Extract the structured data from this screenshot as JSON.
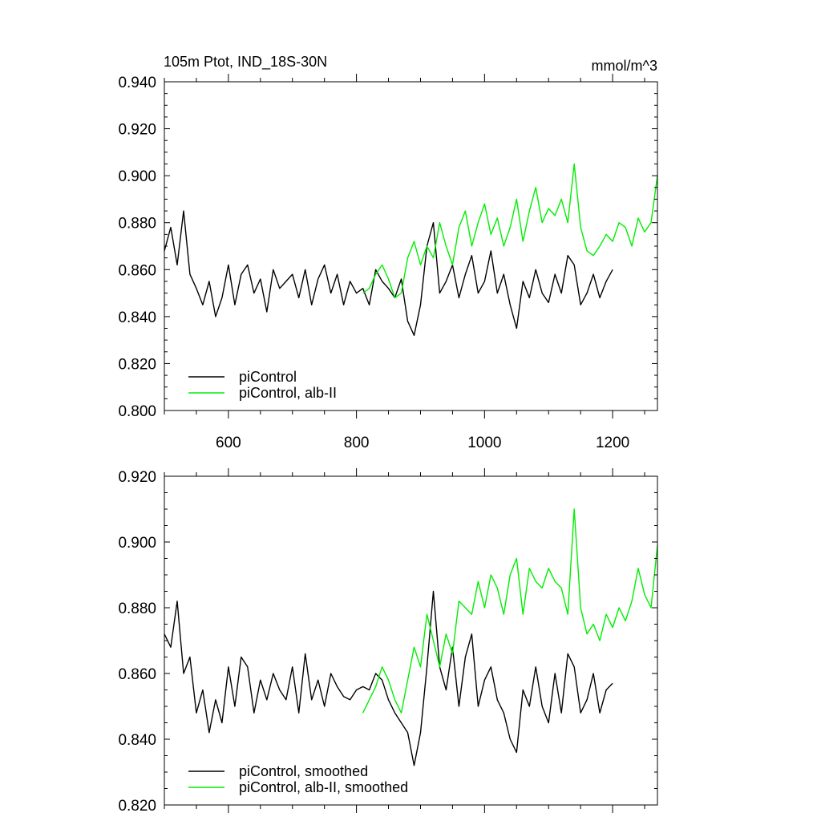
{
  "chart_data": [
    {
      "type": "line",
      "title_left": "105m Ptot, IND_18S-30N",
      "title_right": "mmol/m^3",
      "xlim": [
        500,
        1270
      ],
      "ylim": [
        0.8,
        0.94
      ],
      "x_ticks": [
        600,
        800,
        1000,
        1200
      ],
      "x_tick_labels": [
        "600",
        "800",
        "1000",
        "1200"
      ],
      "y_ticks": [
        0.8,
        0.82,
        0.84,
        0.86,
        0.88,
        0.9,
        0.92,
        0.94
      ],
      "y_tick_labels": [
        "0.800",
        "0.820",
        "0.840",
        "0.860",
        "0.880",
        "0.900",
        "0.920",
        "0.940"
      ],
      "legend_position": "bottom-left",
      "series": [
        {
          "name": "piControl",
          "color": "#000000",
          "x": [
            500,
            510,
            520,
            530,
            540,
            550,
            560,
            570,
            580,
            590,
            600,
            610,
            620,
            630,
            640,
            650,
            660,
            670,
            680,
            690,
            700,
            710,
            720,
            730,
            740,
            750,
            760,
            770,
            780,
            790,
            800,
            810,
            820,
            830,
            840,
            850,
            860,
            870,
            880,
            890,
            900,
            910,
            920,
            930,
            940,
            950,
            960,
            970,
            980,
            990,
            1000,
            1010,
            1020,
            1030,
            1040,
            1050,
            1060,
            1070,
            1080,
            1090,
            1100,
            1110,
            1120,
            1130,
            1140,
            1150,
            1160,
            1170,
            1180,
            1190,
            1200
          ],
          "values": [
            0.868,
            0.878,
            0.862,
            0.885,
            0.858,
            0.852,
            0.845,
            0.855,
            0.84,
            0.848,
            0.862,
            0.845,
            0.858,
            0.862,
            0.85,
            0.856,
            0.842,
            0.86,
            0.852,
            0.855,
            0.858,
            0.848,
            0.86,
            0.845,
            0.856,
            0.862,
            0.85,
            0.858,
            0.845,
            0.855,
            0.85,
            0.852,
            0.845,
            0.86,
            0.855,
            0.852,
            0.848,
            0.856,
            0.838,
            0.832,
            0.845,
            0.87,
            0.88,
            0.85,
            0.855,
            0.862,
            0.848,
            0.858,
            0.866,
            0.85,
            0.855,
            0.868,
            0.85,
            0.858,
            0.845,
            0.835,
            0.855,
            0.848,
            0.86,
            0.85,
            0.846,
            0.858,
            0.85,
            0.866,
            0.862,
            0.845,
            0.85,
            0.858,
            0.848,
            0.855,
            0.86
          ]
        },
        {
          "name": "piControl, alb-II",
          "color": "#00ee00",
          "x": [
            810,
            820,
            830,
            840,
            850,
            860,
            870,
            880,
            890,
            900,
            910,
            920,
            930,
            940,
            950,
            960,
            970,
            980,
            990,
            1000,
            1010,
            1020,
            1030,
            1040,
            1050,
            1060,
            1070,
            1080,
            1090,
            1100,
            1110,
            1120,
            1130,
            1140,
            1150,
            1160,
            1170,
            1180,
            1190,
            1200,
            1210,
            1220,
            1230,
            1240,
            1250,
            1260,
            1270
          ],
          "values": [
            0.85,
            0.852,
            0.858,
            0.862,
            0.856,
            0.848,
            0.85,
            0.865,
            0.872,
            0.862,
            0.87,
            0.865,
            0.88,
            0.87,
            0.862,
            0.878,
            0.885,
            0.87,
            0.88,
            0.888,
            0.875,
            0.882,
            0.87,
            0.878,
            0.89,
            0.872,
            0.885,
            0.895,
            0.88,
            0.886,
            0.883,
            0.89,
            0.88,
            0.905,
            0.878,
            0.868,
            0.866,
            0.87,
            0.875,
            0.872,
            0.88,
            0.878,
            0.87,
            0.882,
            0.876,
            0.88,
            0.9
          ]
        }
      ]
    },
    {
      "type": "line",
      "xlim": [
        500,
        1270
      ],
      "ylim": [
        0.82,
        0.92
      ],
      "x_ticks": [
        600,
        800,
        1000,
        1200
      ],
      "y_ticks": [
        0.82,
        0.84,
        0.86,
        0.88,
        0.9,
        0.92
      ],
      "y_tick_labels": [
        "0.820",
        "0.840",
        "0.860",
        "0.880",
        "0.900",
        "0.920"
      ],
      "legend_position": "bottom-left",
      "series": [
        {
          "name": "piControl, smoothed",
          "color": "#000000",
          "x": [
            500,
            510,
            520,
            530,
            540,
            550,
            560,
            570,
            580,
            590,
            600,
            610,
            620,
            630,
            640,
            650,
            660,
            670,
            680,
            690,
            700,
            710,
            720,
            730,
            740,
            750,
            760,
            770,
            780,
            790,
            800,
            810,
            820,
            830,
            840,
            850,
            860,
            870,
            880,
            890,
            900,
            910,
            920,
            930,
            940,
            950,
            960,
            970,
            980,
            990,
            1000,
            1010,
            1020,
            1030,
            1040,
            1050,
            1060,
            1070,
            1080,
            1090,
            1100,
            1110,
            1120,
            1130,
            1140,
            1150,
            1160,
            1170,
            1180,
            1190,
            1200
          ],
          "values": [
            0.872,
            0.868,
            0.882,
            0.86,
            0.865,
            0.848,
            0.855,
            0.842,
            0.852,
            0.845,
            0.862,
            0.85,
            0.865,
            0.862,
            0.848,
            0.858,
            0.852,
            0.86,
            0.855,
            0.852,
            0.862,
            0.848,
            0.866,
            0.852,
            0.858,
            0.85,
            0.86,
            0.856,
            0.853,
            0.852,
            0.855,
            0.856,
            0.855,
            0.86,
            0.858,
            0.852,
            0.848,
            0.845,
            0.842,
            0.832,
            0.842,
            0.862,
            0.885,
            0.862,
            0.855,
            0.868,
            0.85,
            0.865,
            0.872,
            0.85,
            0.858,
            0.862,
            0.852,
            0.848,
            0.84,
            0.836,
            0.855,
            0.85,
            0.862,
            0.85,
            0.845,
            0.86,
            0.848,
            0.866,
            0.862,
            0.848,
            0.852,
            0.86,
            0.848,
            0.855,
            0.857
          ]
        },
        {
          "name": "piControl, alb-II, smoothed",
          "color": "#00ee00",
          "x": [
            810,
            820,
            830,
            840,
            850,
            860,
            870,
            880,
            890,
            900,
            910,
            920,
            930,
            940,
            950,
            960,
            970,
            980,
            990,
            1000,
            1010,
            1020,
            1030,
            1040,
            1050,
            1060,
            1070,
            1080,
            1090,
            1100,
            1110,
            1120,
            1130,
            1140,
            1150,
            1160,
            1170,
            1180,
            1190,
            1200,
            1210,
            1220,
            1230,
            1240,
            1250,
            1260,
            1270
          ],
          "values": [
            0.848,
            0.852,
            0.856,
            0.862,
            0.858,
            0.852,
            0.848,
            0.858,
            0.868,
            0.862,
            0.878,
            0.87,
            0.862,
            0.872,
            0.866,
            0.882,
            0.88,
            0.878,
            0.888,
            0.88,
            0.89,
            0.886,
            0.878,
            0.89,
            0.895,
            0.878,
            0.892,
            0.888,
            0.886,
            0.892,
            0.888,
            0.886,
            0.878,
            0.91,
            0.88,
            0.872,
            0.875,
            0.87,
            0.878,
            0.874,
            0.88,
            0.876,
            0.882,
            0.892,
            0.884,
            0.88,
            0.899
          ]
        }
      ]
    }
  ]
}
